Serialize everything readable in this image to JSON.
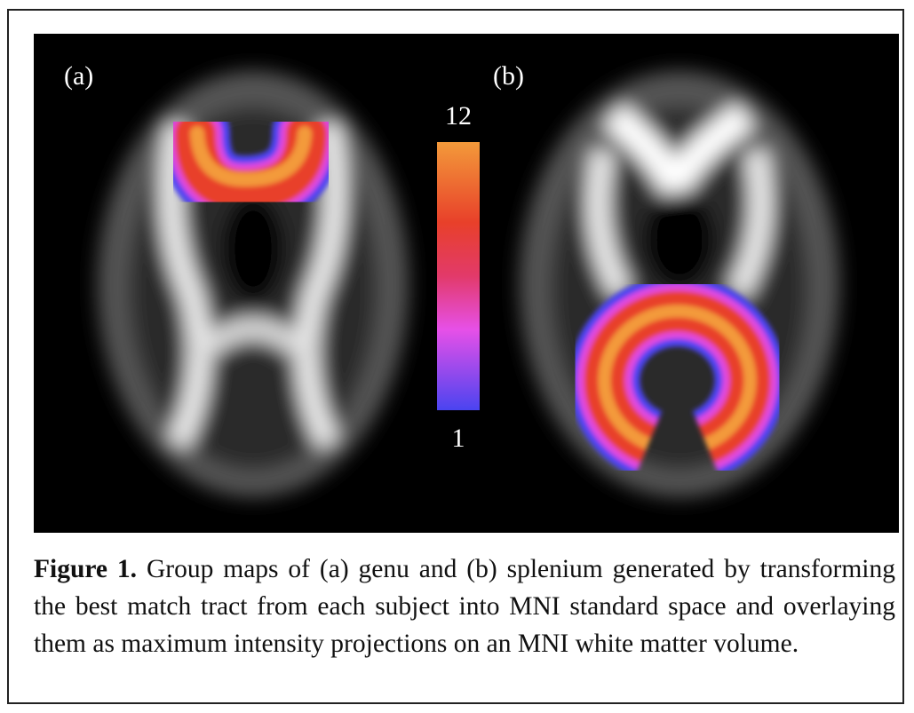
{
  "figure": {
    "panels": [
      {
        "label": "(a)"
      },
      {
        "label": "(b)"
      }
    ],
    "colorbar": {
      "max": 12,
      "min": 1
    },
    "caption": {
      "label": "Figure 1.",
      "text": "Group maps of (a) genu and (b) splenium generated by transforming the best match tract from each subject into MNI standard space and overlaying them as maximum intensity projections on an MNI white matter volume."
    }
  }
}
